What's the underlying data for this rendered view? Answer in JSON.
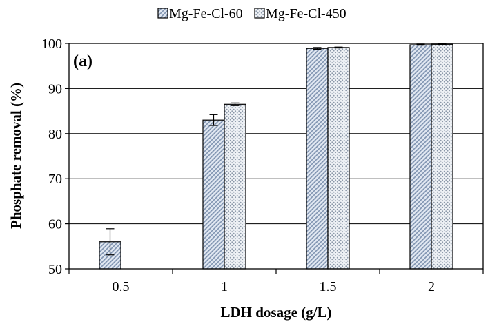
{
  "chart_data": {
    "type": "bar",
    "panel_label": "(a)",
    "xlabel": "LDH dosage (g/L)",
    "ylabel": "Phosphate removal (%)",
    "categories": [
      "0.5",
      "1",
      "1.5",
      "2"
    ],
    "ylim": [
      50,
      100
    ],
    "yticks": [
      50,
      60,
      70,
      80,
      90,
      100
    ],
    "grid": true,
    "legend_position": "top",
    "series": [
      {
        "name": "Mg-Fe-Cl-60",
        "pattern": "diagonal-hatch",
        "color": "#8fa3bf",
        "values": [
          56.0,
          83.0,
          98.9,
          99.7
        ],
        "errors": [
          2.9,
          1.2,
          0.2,
          0.1
        ]
      },
      {
        "name": "Mg-Fe-Cl-450",
        "pattern": "dots",
        "color": "#8f9fb3",
        "values": [
          null,
          86.5,
          99.1,
          99.8
        ],
        "errors": [
          null,
          0.3,
          0.1,
          0.1
        ]
      }
    ]
  }
}
